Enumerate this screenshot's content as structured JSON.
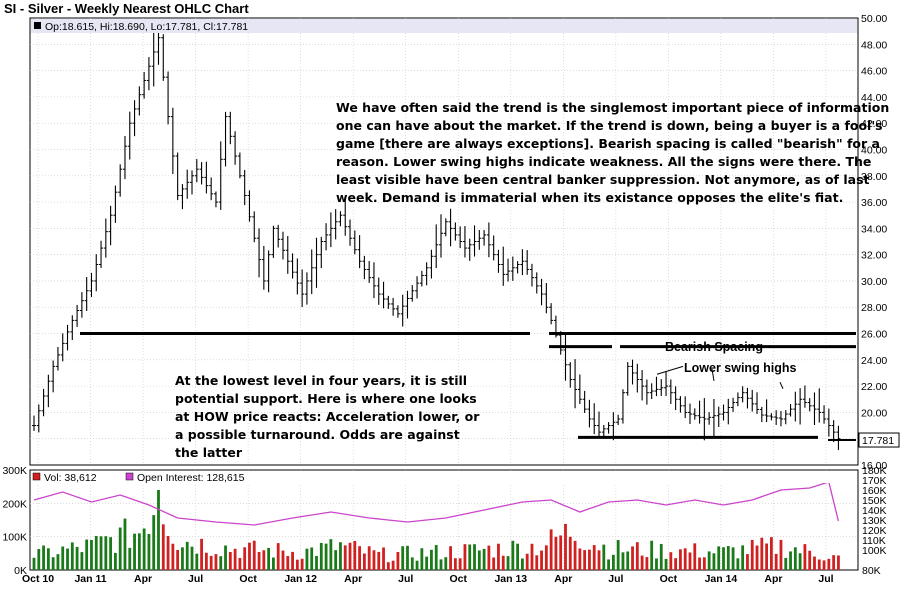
{
  "chart_data": {
    "type": "ohlc",
    "title": "SI - Silver - Weekly Nearest OHLC Chart",
    "header": {
      "open": "18.615",
      "high": "18.690",
      "low": "17.781",
      "close": "17.781",
      "text": "Op:18.615, Hi:18.690, Lo:17.781, Cl:17.781"
    },
    "last_price_label": "17.781",
    "x_labels": [
      "Oct 10",
      "Jan 11",
      "Apr",
      "Jul",
      "Oct",
      "Jan 12",
      "Apr",
      "Jul",
      "Oct",
      "Jan 13",
      "Apr",
      "Jul",
      "Oct",
      "Jan 14",
      "Apr",
      "Jul"
    ],
    "price_axis": {
      "ylim": [
        16,
        50
      ],
      "ticks": [
        "16.00",
        "18.00",
        "20.00",
        "22.00",
        "24.00",
        "26.00",
        "28.00",
        "30.00",
        "32.00",
        "34.00",
        "36.00",
        "38.00",
        "40.00",
        "42.00",
        "44.00",
        "46.00",
        "48.00",
        "50.00"
      ]
    },
    "price_series": [
      {
        "x": 0,
        "y": 19.0
      },
      {
        "x": 4,
        "y": 23.5
      },
      {
        "x": 8,
        "y": 27.0
      },
      {
        "x": 12,
        "y": 30.0
      },
      {
        "x": 16,
        "y": 35.0
      },
      {
        "x": 20,
        "y": 42.0
      },
      {
        "x": 26,
        "y": 48.5
      },
      {
        "x": 30,
        "y": 36.5
      },
      {
        "x": 34,
        "y": 38.5
      },
      {
        "x": 38,
        "y": 36.0
      },
      {
        "x": 40,
        "y": 42.5
      },
      {
        "x": 44,
        "y": 36.5
      },
      {
        "x": 48,
        "y": 30.0
      },
      {
        "x": 50,
        "y": 34.0
      },
      {
        "x": 56,
        "y": 29.0
      },
      {
        "x": 60,
        "y": 33.0
      },
      {
        "x": 64,
        "y": 35.0
      },
      {
        "x": 68,
        "y": 31.5
      },
      {
        "x": 72,
        "y": 29.0
      },
      {
        "x": 76,
        "y": 27.5
      },
      {
        "x": 82,
        "y": 31.0
      },
      {
        "x": 86,
        "y": 34.5
      },
      {
        "x": 90,
        "y": 32.5
      },
      {
        "x": 94,
        "y": 33.5
      },
      {
        "x": 98,
        "y": 30.5
      },
      {
        "x": 102,
        "y": 31.5
      },
      {
        "x": 106,
        "y": 29.0
      },
      {
        "x": 108,
        "y": 27.0
      },
      {
        "x": 112,
        "y": 22.5
      },
      {
        "x": 116,
        "y": 19.5
      },
      {
        "x": 118,
        "y": 18.5
      },
      {
        "x": 122,
        "y": 19.5
      },
      {
        "x": 124,
        "y": 23.5
      },
      {
        "x": 128,
        "y": 21.5
      },
      {
        "x": 132,
        "y": 22.0
      },
      {
        "x": 136,
        "y": 20.0
      },
      {
        "x": 140,
        "y": 19.5
      },
      {
        "x": 144,
        "y": 20.0
      },
      {
        "x": 148,
        "y": 21.5
      },
      {
        "x": 152,
        "y": 19.8
      },
      {
        "x": 156,
        "y": 19.5
      },
      {
        "x": 160,
        "y": 21.0
      },
      {
        "x": 164,
        "y": 20.0
      },
      {
        "x": 168,
        "y": 18.0
      }
    ],
    "volume_axis": {
      "labels": [
        "0K",
        "100K",
        "200K",
        "300K"
      ],
      "max": 300
    },
    "oi_axis": {
      "labels": [
        "80K",
        "100K",
        "110K",
        "120K",
        "130K",
        "140K",
        "150K",
        "160K",
        "170K",
        "180K"
      ]
    },
    "volume_legend": "Vol: 38,612",
    "oi_legend": "Open Interest: 128,615",
    "volume": [
      {
        "x": 0,
        "y": 50
      },
      {
        "x": 12,
        "y": 80
      },
      {
        "x": 22,
        "y": 130
      },
      {
        "x": 26,
        "y": 240
      },
      {
        "x": 30,
        "y": 100
      },
      {
        "x": 42,
        "y": 70
      },
      {
        "x": 56,
        "y": 60
      },
      {
        "x": 64,
        "y": 80
      },
      {
        "x": 72,
        "y": 50
      },
      {
        "x": 86,
        "y": 60
      },
      {
        "x": 96,
        "y": 70
      },
      {
        "x": 106,
        "y": 80
      },
      {
        "x": 112,
        "y": 130
      },
      {
        "x": 120,
        "y": 70
      },
      {
        "x": 132,
        "y": 65
      },
      {
        "x": 144,
        "y": 60
      },
      {
        "x": 156,
        "y": 80
      },
      {
        "x": 168,
        "y": 40
      }
    ],
    "open_interest": [
      {
        "x": 0,
        "y": 150
      },
      {
        "x": 6,
        "y": 158
      },
      {
        "x": 12,
        "y": 148
      },
      {
        "x": 18,
        "y": 155
      },
      {
        "x": 24,
        "y": 145
      },
      {
        "x": 30,
        "y": 132
      },
      {
        "x": 38,
        "y": 128
      },
      {
        "x": 46,
        "y": 125
      },
      {
        "x": 54,
        "y": 132
      },
      {
        "x": 62,
        "y": 138
      },
      {
        "x": 70,
        "y": 132
      },
      {
        "x": 78,
        "y": 128
      },
      {
        "x": 86,
        "y": 132
      },
      {
        "x": 94,
        "y": 140
      },
      {
        "x": 102,
        "y": 148
      },
      {
        "x": 108,
        "y": 150
      },
      {
        "x": 114,
        "y": 138
      },
      {
        "x": 120,
        "y": 148
      },
      {
        "x": 126,
        "y": 150
      },
      {
        "x": 132,
        "y": 145
      },
      {
        "x": 138,
        "y": 150
      },
      {
        "x": 144,
        "y": 145
      },
      {
        "x": 150,
        "y": 150
      },
      {
        "x": 156,
        "y": 160
      },
      {
        "x": 162,
        "y": 162
      },
      {
        "x": 166,
        "y": 168
      },
      {
        "x": 168,
        "y": 129
      }
    ]
  },
  "annotations": {
    "paragraph_top": [
      "We have often said the trend is the singlemost important piece of information",
      "one can have about the market.  If the trend is down, being a buyer is a fool's",
      "game [there are always exceptions].  Bearish spacing is called \"bearish\" for a",
      "reason.  Lower swing highs indicate weakness.  All the signs were there.  The",
      "least visible have been central banker suppression.  Not anymore, as of last",
      "week.  Demand is immaterial when its existance opposes the elite's fiat."
    ],
    "paragraph_bottom": [
      "At the lowest level in four years, it is still",
      "potential support.  Here is where one looks",
      "at HOW price reacts: Acceleration lower, or",
      "a possible turnaround.  Odds are against",
      "the latter"
    ],
    "bearish_spacing": "Bearish Spacing",
    "lower_swing_highs": "Lower swing highs"
  },
  "colors": {
    "up_volume": "#1a7a1a",
    "down_volume": "#d02020",
    "open_interest": "#cc44cc",
    "price_bar": "#000000",
    "header_bg": "#e6e6f4",
    "grid": "#c8c8c8"
  }
}
